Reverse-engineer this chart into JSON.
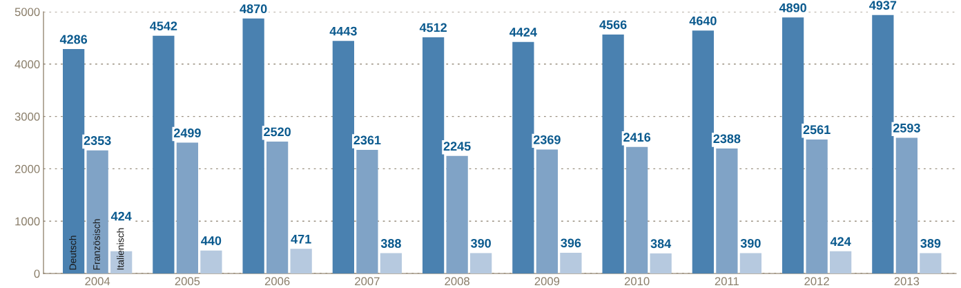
{
  "chart_data": {
    "type": "bar",
    "categories": [
      "2004",
      "2005",
      "2006",
      "2007",
      "2008",
      "2009",
      "2010",
      "2011",
      "2012",
      "2013"
    ],
    "series": [
      {
        "name": "Deutsch",
        "color": "#4a81b0",
        "values": [
          4286,
          4542,
          4870,
          4443,
          4512,
          4424,
          4566,
          4640,
          4890,
          4937
        ]
      },
      {
        "name": "Französisch",
        "color": "#80a3c6",
        "values": [
          2353,
          2499,
          2520,
          2361,
          2245,
          2369,
          2416,
          2388,
          2561,
          2593
        ]
      },
      {
        "name": "Italienisch",
        "color": "#b6c9df",
        "values": [
          424,
          440,
          471,
          388,
          390,
          396,
          384,
          390,
          424,
          389
        ]
      }
    ],
    "ylim": [
      0,
      5000
    ],
    "yticks": [
      0,
      1000,
      2000,
      3000,
      4000,
      5000
    ],
    "grid": "y",
    "data_labels": true,
    "legend": false
  }
}
